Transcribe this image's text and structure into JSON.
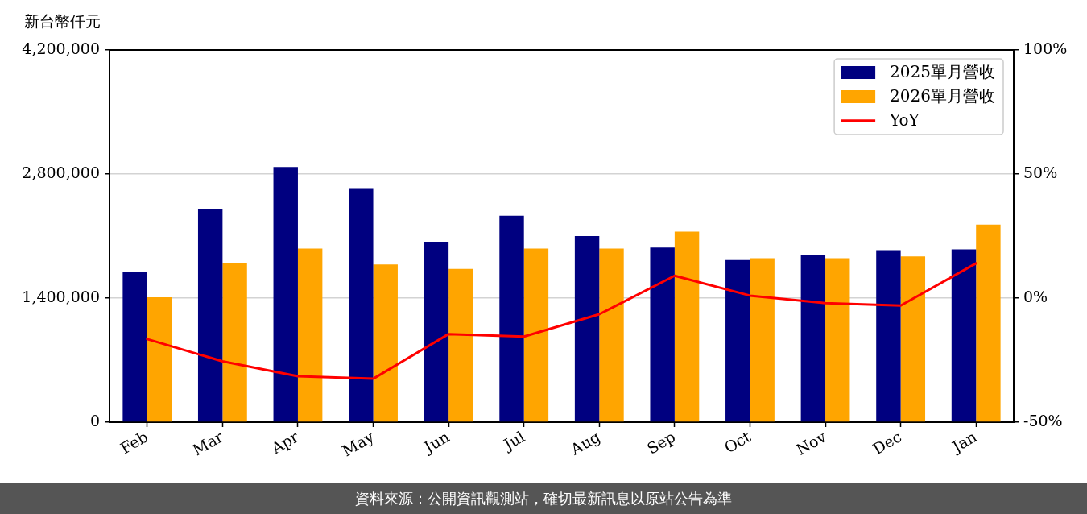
{
  "chart_data": {
    "type": "bar",
    "ylabel": "新台幣仟元",
    "annotations": [
      "資料來源：公開資訊觀測站，確切最新訊息以原站公告為準"
    ],
    "categories": [
      "Feb",
      "Mar",
      "Apr",
      "May",
      "Jun",
      "Jul",
      "Aug",
      "Sep",
      "Oct",
      "Nov",
      "Dec",
      "Jan"
    ],
    "series": [
      {
        "name": "2025單月營收",
        "color": "#000080",
        "values": [
          1690000,
          2410000,
          2880000,
          2640000,
          2030000,
          2330000,
          2100000,
          1970000,
          1830000,
          1890000,
          1940000,
          1950000
        ]
      },
      {
        "name": "2026單月營收",
        "color": "#ffa500",
        "values": [
          1410000,
          1790000,
          1960000,
          1780000,
          1730000,
          1960000,
          1960000,
          2150000,
          1850000,
          1850000,
          1870000,
          2230000
        ]
      },
      {
        "name": "YoY",
        "type": "line",
        "axis": "y2",
        "color": "#ff0000",
        "values": [
          -16.5,
          -25.5,
          -31.5,
          -32.5,
          -14.5,
          -15.5,
          -6.5,
          9,
          1,
          -2,
          -3,
          14
        ]
      }
    ],
    "ylim": [
      0,
      4200000
    ],
    "yticks": [
      0,
      {
        "value": 1400000,
        "label": "1,400,000"
      },
      {
        "value": 2800000,
        "label": "2,800,000"
      },
      {
        "value": 4200000,
        "label": "4,200,000"
      }
    ],
    "y2lim": [
      -50,
      100
    ],
    "y2ticks": [
      {
        "value": -50,
        "label": "-50%"
      },
      {
        "value": 0,
        "label": "0%"
      },
      {
        "value": 50,
        "label": "50%"
      },
      {
        "value": 100,
        "label": "100%"
      }
    ],
    "grid": "y",
    "legend": "top right",
    "marker": "none",
    "line_style": "solid"
  }
}
